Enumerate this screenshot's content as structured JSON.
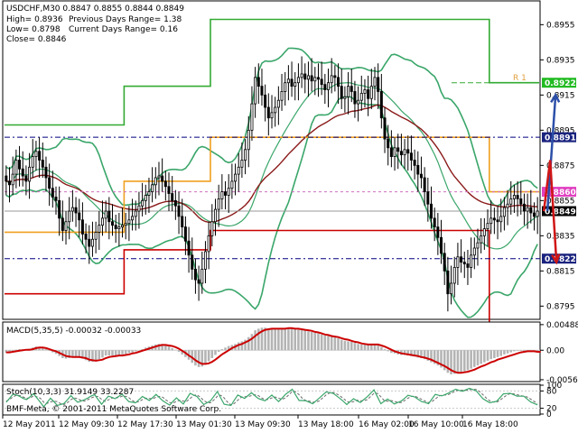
{
  "header": {
    "symbol_line": "USDCHF,M30  0.8847 0.8855 0.8844 0.8849",
    "high_line": "High= 0.8936",
    "low_line": "Low= 0.8798",
    "close_line": "Close= 0.8846",
    "prev_range": "Previous Days Range= 1.38",
    "curr_range": "Current Days Range= 0.16"
  },
  "copyright": "BMF-Meta, © 2001-2011 MetaQuotes Software Corp.",
  "colors": {
    "candle": "#000000",
    "bollinger": "#3aa66a",
    "ma": "#8b1a1a",
    "orange_level": "#f0a020",
    "red_level": "#cc0000",
    "green_level": "#33aa33",
    "blue_dash": "#000080",
    "pink_dash": "#d070c0",
    "r1_label": "#e0a040",
    "arrow_up": "#2c4fa8",
    "arrow_down": "#d01515",
    "label_green": "#22bb22",
    "label_navy": "#1a237e",
    "label_pink": "#e040c0",
    "label_black": "#000000",
    "macd_hist": "#b4b4b4",
    "macd_line": "#cc0000",
    "stoch_main": "#3aa66a",
    "stoch_signal": "#6a6a6a"
  },
  "chart_data": [
    {
      "type": "candlestick",
      "title": "USDCHF,M30",
      "ylim": [
        0.8788,
        0.8968
      ],
      "price_ticks": [
        "0.8955",
        "0.8935",
        "0.8915",
        "0.8895",
        "0.8875",
        "0.8855",
        "0.8835",
        "0.8815",
        "0.8795"
      ],
      "price_tick_values": [
        0.8955,
        0.8935,
        0.8915,
        0.8895,
        0.8875,
        0.8855,
        0.8835,
        0.8815,
        0.8795
      ],
      "x_labels": [
        "12 May 2011",
        "12 May 09:30",
        "12 May 17:30",
        "13 May 01:30",
        "13 May 09:30",
        "13 May 18:00",
        "16 May 02:00",
        "16 May 10:00",
        "16 May 18:00"
      ],
      "levels": [
        {
          "name": "green-level",
          "value": 0.8922,
          "label": "0.8922"
        },
        {
          "name": "blue-level-upper",
          "value": 0.8891,
          "label": "0.8891"
        },
        {
          "name": "pink-level",
          "value": 0.886,
          "label": "0.8860"
        },
        {
          "name": "close-level",
          "value": 0.8849,
          "label": "0.8849"
        },
        {
          "name": "blue-level-lower",
          "value": 0.8822,
          "label": "0.8822"
        }
      ],
      "r1_label": "R 1",
      "close": [
        0.8866,
        0.8864,
        0.887,
        0.8878,
        0.8873,
        0.8869,
        0.8866,
        0.8874,
        0.888,
        0.8883,
        0.8878,
        0.8874,
        0.8868,
        0.8862,
        0.8857,
        0.8855,
        0.8845,
        0.8838,
        0.8843,
        0.8849,
        0.8851,
        0.8848,
        0.8844,
        0.8836,
        0.8833,
        0.8829,
        0.8833,
        0.8837,
        0.8841,
        0.8845,
        0.8849,
        0.8843,
        0.8841,
        0.8839,
        0.884,
        0.8841,
        0.8842,
        0.8844,
        0.8846,
        0.8849,
        0.8852,
        0.8855,
        0.8858,
        0.886,
        0.8864,
        0.8868,
        0.8869,
        0.8866,
        0.8863,
        0.8859,
        0.8855,
        0.8852,
        0.8846,
        0.884,
        0.8832,
        0.8824,
        0.8816,
        0.881,
        0.8808,
        0.8816,
        0.8826,
        0.8835,
        0.8843,
        0.885,
        0.8856,
        0.886,
        0.8858,
        0.8862,
        0.8866,
        0.887,
        0.8874,
        0.8878,
        0.8884,
        0.8895,
        0.891,
        0.8925,
        0.892,
        0.8915,
        0.8908,
        0.8902,
        0.8905,
        0.8908,
        0.8912,
        0.8917,
        0.8922,
        0.8924,
        0.892,
        0.8922,
        0.8925,
        0.8927,
        0.8924,
        0.8926,
        0.8923,
        0.8925,
        0.8924,
        0.8921,
        0.8918,
        0.8922,
        0.8926,
        0.8925,
        0.892,
        0.8913,
        0.8914,
        0.892,
        0.8917,
        0.891,
        0.8912,
        0.8916,
        0.8918,
        0.8913,
        0.892,
        0.8925,
        0.8917,
        0.8902,
        0.889,
        0.8885,
        0.888,
        0.8885,
        0.8883,
        0.8881,
        0.8884,
        0.8882,
        0.8878,
        0.8875,
        0.887,
        0.8868,
        0.886,
        0.8853,
        0.8845,
        0.884,
        0.8834,
        0.8825,
        0.8815,
        0.8802,
        0.8808,
        0.8817,
        0.8823,
        0.882,
        0.8819,
        0.8817,
        0.8824,
        0.8828,
        0.8831,
        0.8835,
        0.8839,
        0.8842,
        0.8845,
        0.8844,
        0.8843,
        0.8846,
        0.8851,
        0.8853,
        0.8856,
        0.8858,
        0.8856,
        0.8853,
        0.8849,
        0.8851,
        0.8848,
        0.8846,
        0.8849
      ]
    },
    {
      "type": "macd",
      "title": "MACD(5,35,5) -0.00032 -0.00033",
      "ticks": [
        "0.00488",
        "0.00",
        "-0.00562"
      ],
      "tick_values": [
        0.00488,
        0,
        -0.00562
      ],
      "ylim": [
        -0.0058,
        0.0052
      ],
      "histogram": [
        -0.0005,
        -0.0004,
        -0.0002,
        0.0001,
        0.0002,
        0.0002,
        0.0001,
        0.0003,
        0.0005,
        0.0007,
        0.0006,
        0.0004,
        0.0002,
        -0.0001,
        -0.0004,
        -0.0007,
        -0.0011,
        -0.0015,
        -0.0016,
        -0.0015,
        -0.0013,
        -0.0012,
        -0.0013,
        -0.0016,
        -0.0019,
        -0.0022,
        -0.0022,
        -0.002,
        -0.0017,
        -0.0014,
        -0.001,
        -0.001,
        -0.001,
        -0.001,
        -0.0009,
        -0.0008,
        -0.0007,
        -0.0005,
        -0.0004,
        -0.0002,
        0.0,
        0.0002,
        0.0005,
        0.0007,
        0.0009,
        0.0011,
        0.0012,
        0.0012,
        0.001,
        0.0007,
        0.0004,
        0.0001,
        -0.0003,
        -0.0008,
        -0.0013,
        -0.0018,
        -0.0024,
        -0.0029,
        -0.0032,
        -0.0031,
        -0.0027,
        -0.0021,
        -0.0015,
        -0.0009,
        -0.0003,
        0.0002,
        0.0005,
        0.0008,
        0.001,
        0.0012,
        0.0015,
        0.0017,
        0.002,
        0.0025,
        0.0031,
        0.0038,
        0.0041,
        0.0043,
        0.0043,
        0.0042,
        0.0042,
        0.0041,
        0.0041,
        0.0041,
        0.0042,
        0.0042,
        0.0041,
        0.004,
        0.0039,
        0.0039,
        0.0038,
        0.0036,
        0.0035,
        0.0033,
        0.0032,
        0.003,
        0.0028,
        0.0027,
        0.0026,
        0.0025,
        0.0023,
        0.002,
        0.0018,
        0.0017,
        0.0016,
        0.0014,
        0.0012,
        0.0011,
        0.0011,
        0.001,
        0.0011,
        0.0011,
        0.001,
        0.0006,
        0.0002,
        -0.0002,
        -0.0005,
        -0.0006,
        -0.0008,
        -0.0009,
        -0.0009,
        -0.001,
        -0.0011,
        -0.0012,
        -0.0014,
        -0.0015,
        -0.0017,
        -0.002,
        -0.0023,
        -0.0026,
        -0.0029,
        -0.0033,
        -0.0038,
        -0.0043,
        -0.0046,
        -0.0045,
        -0.0043,
        -0.0042,
        -0.004,
        -0.0038,
        -0.0035,
        -0.0032,
        -0.0029,
        -0.0026,
        -0.0023,
        -0.002,
        -0.0017,
        -0.0015,
        -0.0013,
        -0.0011,
        -0.0008,
        -0.0006,
        -0.0004,
        -0.0002,
        -0.0001,
        -0.0001,
        -0.0002,
        -0.0002,
        -0.0003,
        -0.0003,
        -0.0003
      ],
      "signal": [
        -0.0004,
        -0.0004,
        -0.0003,
        -0.0002,
        -0.0001,
        0.0,
        0.0001,
        0.0001,
        0.0002,
        0.0004,
        0.0005,
        0.0005,
        0.0004,
        0.0002,
        0.0,
        -0.0002,
        -0.0005,
        -0.0008,
        -0.0011,
        -0.0012,
        -0.0013,
        -0.0013,
        -0.0013,
        -0.0014,
        -0.0015,
        -0.0018,
        -0.0019,
        -0.002,
        -0.0019,
        -0.0018,
        -0.0015,
        -0.0013,
        -0.0012,
        -0.0011,
        -0.001,
        -0.001,
        -0.0009,
        -0.0008,
        -0.0006,
        -0.0005,
        -0.0003,
        -0.0001,
        0.0001,
        0.0003,
        0.0005,
        0.0007,
        0.0009,
        0.001,
        0.001,
        0.0009,
        0.0008,
        0.0006,
        0.0003,
        -0.0001,
        -0.0005,
        -0.001,
        -0.0014,
        -0.0019,
        -0.0023,
        -0.0026,
        -0.0026,
        -0.0025,
        -0.0022,
        -0.0018,
        -0.0013,
        -0.0008,
        -0.0004,
        0.0,
        0.0004,
        0.0007,
        0.001,
        0.0012,
        0.0015,
        0.0018,
        0.0022,
        0.0027,
        0.0032,
        0.0036,
        0.0039,
        0.004,
        0.0041,
        0.0041,
        0.0041,
        0.0041,
        0.0041,
        0.0042,
        0.0042,
        0.0041,
        0.0041,
        0.004,
        0.0039,
        0.0038,
        0.0037,
        0.0035,
        0.0034,
        0.0032,
        0.003,
        0.0029,
        0.0027,
        0.0026,
        0.0025,
        0.0023,
        0.0021,
        0.002,
        0.0018,
        0.0016,
        0.0015,
        0.0013,
        0.0012,
        0.0011,
        0.0011,
        0.0011,
        0.0011,
        0.0009,
        0.0007,
        0.0004,
        0.0001,
        -0.0002,
        -0.0004,
        -0.0006,
        -0.0007,
        -0.0008,
        -0.0009,
        -0.001,
        -0.0011,
        -0.0013,
        -0.0014,
        -0.0016,
        -0.0018,
        -0.0021,
        -0.0024,
        -0.0027,
        -0.003,
        -0.0034,
        -0.0038,
        -0.0041,
        -0.0043,
        -0.0043,
        -0.0042,
        -0.0041,
        -0.0039,
        -0.0037,
        -0.0034,
        -0.0031,
        -0.0029,
        -0.0026,
        -0.0023,
        -0.0021,
        -0.0018,
        -0.0016,
        -0.0014,
        -0.0012,
        -0.001,
        -0.0008,
        -0.0006,
        -0.0004,
        -0.0003,
        -0.0002,
        -0.0002,
        -0.0002,
        -0.0003,
        -0.0003
      ]
    },
    {
      "type": "stochastic",
      "title": "Stoch(10,3,3) 31.9149 33.2287",
      "ticks": [
        "100",
        "80",
        "20",
        "0"
      ],
      "tick_values": [
        100,
        80,
        20,
        0
      ],
      "ylim": [
        0,
        100
      ],
      "main": [
        41,
        55,
        69,
        66,
        61,
        54,
        50,
        60,
        71,
        56,
        41,
        25,
        40,
        55,
        43,
        30,
        33,
        37,
        50,
        64,
        52,
        41,
        45,
        50,
        56,
        63,
        67,
        50,
        34,
        48,
        62,
        58,
        53,
        61,
        69,
        56,
        43,
        41,
        39,
        50,
        61,
        54,
        47,
        57,
        68,
        57,
        46,
        38,
        31,
        44,
        56,
        45,
        35,
        53,
        72,
        66,
        61,
        47,
        33,
        39,
        46,
        62,
        78,
        56,
        34,
        32,
        30,
        48,
        66,
        60,
        54,
        64,
        74,
        64,
        54,
        50,
        46,
        56,
        66,
        54,
        43,
        55,
        68,
        77,
        86,
        66,
        47,
        47,
        46,
        41,
        36,
        46,
        56,
        67,
        77,
        74,
        72,
        63,
        54,
        44,
        33,
        43,
        53,
        46,
        40,
        50,
        60,
        72,
        84,
        60,
        36,
        44,
        52,
        43,
        35,
        40,
        45,
        55,
        65,
        62,
        59,
        51,
        43,
        40,
        36,
        52,
        68,
        65,
        63,
        68,
        73,
        80,
        86,
        82,
        79,
        84,
        89,
        85,
        81,
        67,
        53,
        46,
        39,
        42,
        44,
        57,
        70,
        71,
        72,
        67,
        62,
        62,
        62,
        52,
        42,
        37,
        32
      ],
      "signal": [
        45,
        50,
        60,
        65,
        64,
        59,
        55,
        55,
        63,
        60,
        55,
        41,
        37,
        42,
        45,
        43,
        36,
        33,
        40,
        50,
        56,
        53,
        47,
        45,
        50,
        56,
        61,
        61,
        51,
        44,
        49,
        55,
        57,
        57,
        62,
        62,
        57,
        47,
        41,
        43,
        50,
        55,
        54,
        53,
        58,
        61,
        58,
        48,
        40,
        38,
        44,
        48,
        45,
        44,
        54,
        64,
        67,
        58,
        47,
        40,
        39,
        49,
        62,
        65,
        56,
        41,
        32,
        37,
        48,
        58,
        60,
        60,
        64,
        67,
        64,
        56,
        50,
        51,
        56,
        59,
        55,
        51,
        56,
        67,
        78,
        77,
        67,
        54,
        47,
        45,
        41,
        42,
        46,
        57,
        67,
        73,
        75,
        70,
        63,
        54,
        44,
        40,
        43,
        48,
        46,
        46,
        50,
        61,
        72,
        72,
        60,
        47,
        44,
        47,
        44,
        40,
        40,
        47,
        55,
        61,
        62,
        57,
        51,
        45,
        40,
        43,
        52,
        62,
        66,
        66,
        68,
        74,
        80,
        83,
        82,
        82,
        84,
        86,
        85,
        78,
        67,
        55,
        46,
        42,
        41,
        48,
        57,
        66,
        71,
        70,
        67,
        64,
        62,
        59,
        52,
        44,
        37
      ]
    }
  ]
}
